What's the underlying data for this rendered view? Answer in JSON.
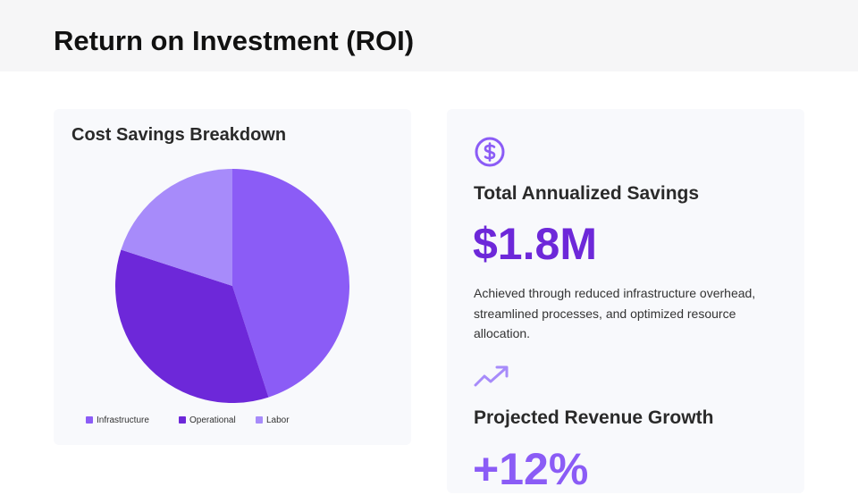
{
  "header": {
    "title": "Return on Investment (ROI)"
  },
  "chart_data": {
    "type": "pie",
    "title": "Cost Savings Breakdown",
    "categories": [
      "Infrastructure",
      "Operational",
      "Labor"
    ],
    "values": [
      45,
      35,
      20
    ],
    "colors": [
      "#8b5cf6",
      "#6d28d9",
      "#a78bfa"
    ],
    "legend": "bottom"
  },
  "savings_card": {
    "title": "Total Annualized Savings",
    "value": "$1.8M",
    "description": "Achieved through reduced infrastructure overhead, streamlined processes, and optimized resource allocation."
  },
  "growth_card": {
    "title": "Projected Revenue Growth",
    "value": "+12%"
  }
}
